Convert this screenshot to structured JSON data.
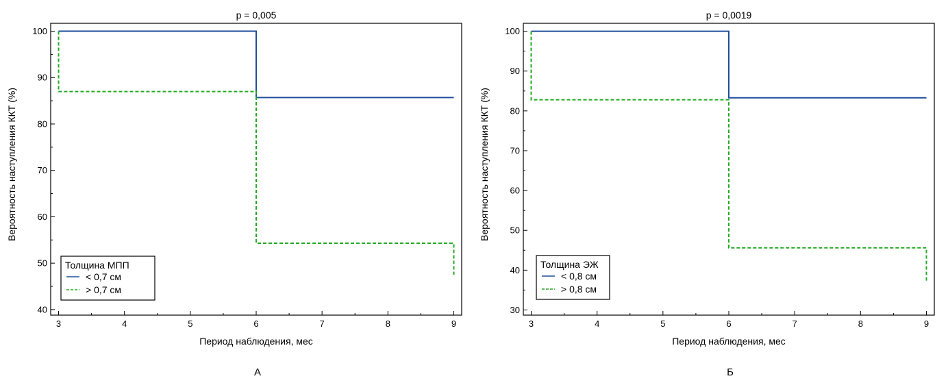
{
  "chart_data": [
    {
      "type": "line",
      "panel_label": "А",
      "title": "p = 0,005",
      "xlabel": "Период наблюдения, мес",
      "ylabel": "Вероятность наступления ККТ (%)",
      "xlim": [
        2.88,
        9.12
      ],
      "ylim": [
        38.8,
        101.7
      ],
      "xticks": [
        3,
        4,
        5,
        6,
        7,
        8,
        9
      ],
      "yticks": [
        40,
        50,
        60,
        70,
        80,
        90,
        100
      ],
      "grid": false,
      "legend_position": "bottom-left",
      "legend_title": "Толщина МПП",
      "series": [
        {
          "name": "< 0,7 см",
          "color": "#1f4e9c",
          "dash": "solid",
          "x": [
            3,
            6,
            6,
            9
          ],
          "y": [
            100,
            100,
            85.7,
            85.7
          ]
        },
        {
          "name": "> 0,7 см",
          "color": "#22aa22",
          "dash": "dashed",
          "x": [
            3,
            3,
            6,
            6,
            9,
            9
          ],
          "y": [
            100,
            87,
            87,
            54.3,
            54.3,
            47.5
          ]
        }
      ]
    },
    {
      "type": "line",
      "panel_label": "Б",
      "title": "p = 0,0019",
      "xlabel": "Период наблюдения, мес",
      "ylabel": "Вероятность наступления ККТ (%)",
      "xlim": [
        2.88,
        9.12
      ],
      "ylim": [
        28.7,
        102
      ],
      "xticks": [
        3,
        4,
        5,
        6,
        7,
        8,
        9
      ],
      "yticks": [
        30,
        40,
        50,
        60,
        70,
        80,
        90,
        100
      ],
      "grid": false,
      "legend_position": "bottom-left",
      "legend_title": "Толщина ЭЖ",
      "series": [
        {
          "name": "< 0,8 см",
          "color": "#1f4e9c",
          "dash": "solid",
          "x": [
            3,
            6,
            6,
            9
          ],
          "y": [
            100,
            100,
            83.3,
            83.3
          ]
        },
        {
          "name": "> 0,8 см",
          "color": "#22aa22",
          "dash": "dashed",
          "x": [
            3,
            3,
            6,
            6,
            9,
            9
          ],
          "y": [
            100,
            82.8,
            82.8,
            45.6,
            45.6,
            37
          ]
        }
      ]
    }
  ]
}
